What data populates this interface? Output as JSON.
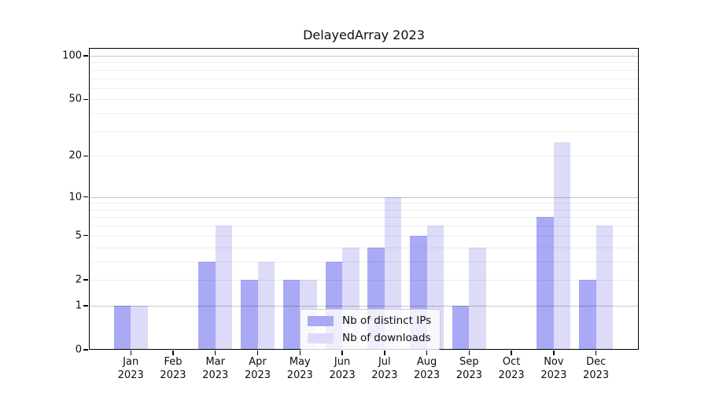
{
  "chart_data": {
    "type": "bar",
    "title": "DelayedArray 2023",
    "categories": [
      "Jan 2023",
      "Feb 2023",
      "Mar 2023",
      "Apr 2023",
      "May 2023",
      "Jun 2023",
      "Jul 2023",
      "Aug 2023",
      "Sep 2023",
      "Oct 2023",
      "Nov 2023",
      "Dec 2023"
    ],
    "x_tick_labels": [
      {
        "month": "Jan",
        "year": "2023"
      },
      {
        "month": "Feb",
        "year": "2023"
      },
      {
        "month": "Mar",
        "year": "2023"
      },
      {
        "month": "Apr",
        "year": "2023"
      },
      {
        "month": "May",
        "year": "2023"
      },
      {
        "month": "Jun",
        "year": "2023"
      },
      {
        "month": "Jul",
        "year": "2023"
      },
      {
        "month": "Aug",
        "year": "2023"
      },
      {
        "month": "Sep",
        "year": "2023"
      },
      {
        "month": "Oct",
        "year": "2023"
      },
      {
        "month": "Nov",
        "year": "2023"
      },
      {
        "month": "Dec",
        "year": "2023"
      }
    ],
    "series": [
      {
        "name": "Nb of distinct IPs",
        "color": "#a9a9f6",
        "values": [
          1,
          0,
          3,
          2,
          2,
          3,
          4,
          5,
          1,
          0,
          7,
          2
        ]
      },
      {
        "name": "Nb of downloads",
        "color": "#dcdcf9",
        "values": [
          1,
          0,
          6,
          3,
          2,
          4,
          10,
          6,
          4,
          0,
          25,
          6
        ]
      }
    ],
    "yscale": "log1p",
    "ylabel": "",
    "xlabel": "",
    "yticks": [
      0,
      1,
      2,
      5,
      10,
      20,
      50,
      100
    ],
    "grid_major_values": [
      1,
      10,
      100
    ],
    "grid_minor_values": [
      2,
      3,
      4,
      5,
      6,
      7,
      8,
      9,
      20,
      30,
      40,
      50,
      60,
      70,
      80,
      90
    ],
    "legend_position": "bottom-center"
  },
  "colors": {
    "series_ips": "#a9a9f6",
    "series_downloads": "#dcdcf9",
    "grid_major": "rgba(0,0,0,0.22)",
    "grid_minor": "rgba(0,0,0,0.065)",
    "spine": "#000000",
    "background": "#ffffff"
  }
}
